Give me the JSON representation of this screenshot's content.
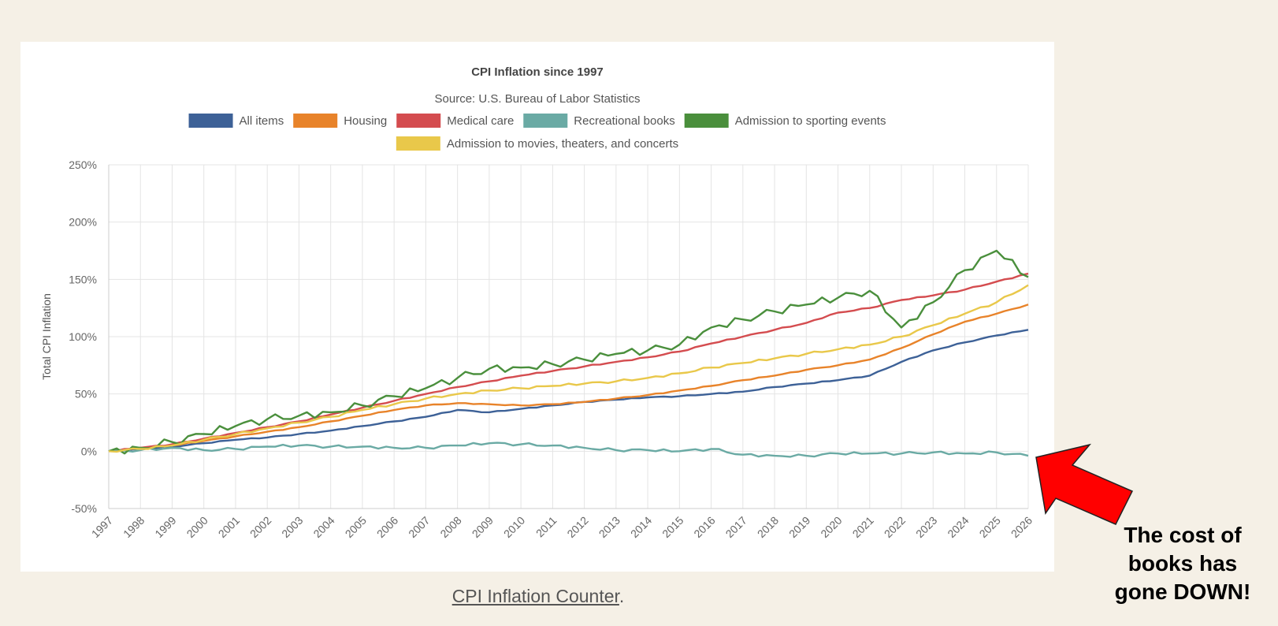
{
  "chart_data": {
    "type": "line",
    "title": "CPI Inflation since 1997",
    "subtitle": "Source: U.S. Bureau of Labor Statistics",
    "ylabel": "Total CPI Inflation",
    "xlabel": "",
    "ylim": [
      -50,
      250
    ],
    "y_ticks": [
      "-50%",
      "0%",
      "50%",
      "100%",
      "150%",
      "200%",
      "250%"
    ],
    "x_ticks": [
      "1997",
      "1998",
      "1999",
      "2000",
      "2001",
      "2002",
      "2003",
      "2004",
      "2005",
      "2006",
      "2007",
      "2008",
      "2009",
      "2010",
      "2011",
      "2012",
      "2013",
      "2014",
      "2015",
      "2016",
      "2017",
      "2018",
      "2019",
      "2020",
      "2021",
      "2022",
      "2023",
      "2024",
      "2025",
      "2026"
    ],
    "grid": true,
    "legend_position": "top",
    "x": [
      1997,
      1998,
      1999,
      2000,
      2001,
      2002,
      2003,
      2004,
      2005,
      2006,
      2007,
      2008,
      2009,
      2010,
      2011,
      2012,
      2013,
      2014,
      2015,
      2016,
      2017,
      2018,
      2019,
      2020,
      2021,
      2022,
      2023,
      2024,
      2025,
      2026
    ],
    "series": [
      {
        "name": "All items",
        "color": "#3d6197",
        "values": [
          0,
          2,
          4,
          7,
          10,
          12,
          15,
          18,
          22,
          26,
          30,
          36,
          34,
          37,
          40,
          43,
          45,
          47,
          48,
          50,
          52,
          56,
          59,
          62,
          66,
          78,
          88,
          95,
          101,
          106
        ]
      },
      {
        "name": "Housing",
        "color": "#e8832a",
        "values": [
          0,
          3,
          5,
          9,
          13,
          17,
          21,
          26,
          31,
          36,
          40,
          42,
          41,
          40,
          41,
          43,
          46,
          49,
          53,
          57,
          62,
          66,
          71,
          75,
          80,
          90,
          102,
          113,
          120,
          128
        ]
      },
      {
        "name": "Medical care",
        "color": "#d44c4f",
        "values": [
          0,
          3,
          6,
          11,
          16,
          21,
          26,
          32,
          38,
          44,
          50,
          56,
          61,
          66,
          70,
          74,
          78,
          82,
          87,
          94,
          100,
          106,
          112,
          121,
          125,
          132,
          136,
          141,
          148,
          155
        ]
      },
      {
        "name": "Recreational books",
        "color": "#6aaaa4",
        "values": [
          0,
          1,
          3,
          1,
          2,
          4,
          5,
          4,
          4,
          3,
          3,
          5,
          7,
          6,
          5,
          3,
          1,
          1,
          0,
          2,
          -3,
          -4,
          -4,
          -2,
          -2,
          -2,
          -1,
          -2,
          -1,
          -4
        ]
      },
      {
        "name": "Admission to sporting events",
        "color": "#4a8f3c",
        "values": [
          0,
          3,
          8,
          15,
          22,
          28,
          31,
          34,
          40,
          48,
          55,
          64,
          72,
          73,
          76,
          80,
          85,
          88,
          93,
          108,
          115,
          122,
          128,
          134,
          140,
          108,
          130,
          158,
          175,
          152
        ]
      },
      {
        "name": "Admission to movies, theaters, and concerts",
        "color": "#e9c84a",
        "values": [
          0,
          2,
          5,
          10,
          15,
          20,
          25,
          30,
          36,
          41,
          46,
          50,
          53,
          55,
          57,
          59,
          61,
          64,
          68,
          73,
          77,
          81,
          85,
          89,
          93,
          100,
          110,
          120,
          130,
          145
        ]
      }
    ]
  },
  "caption": {
    "link_text": "CPI Inflation Counter",
    "trailing": "."
  },
  "annotation": {
    "line1": "The cost of",
    "line2": "books has",
    "line3": "gone DOWN!",
    "arrow_color": "#ff0000"
  }
}
